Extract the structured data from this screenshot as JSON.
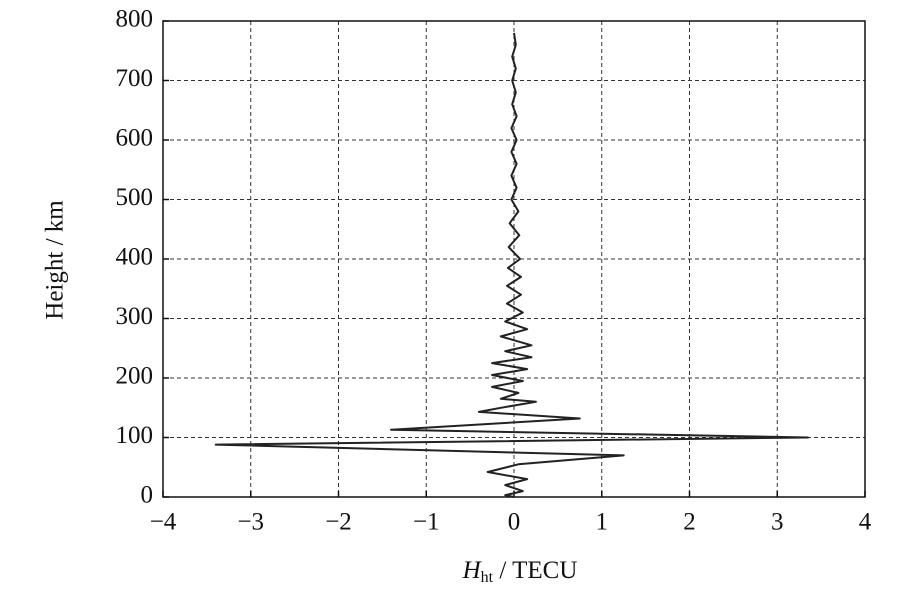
{
  "chart_data": {
    "type": "line",
    "y_label": "Height / km",
    "x_label": {
      "symbol": "H",
      "subscript": "ht",
      "rest": " / TECU"
    },
    "xlim": [
      -4,
      4
    ],
    "xticks": [
      {
        "value": -4,
        "label": "−4"
      },
      {
        "value": -3,
        "label": "−3"
      },
      {
        "value": -2,
        "label": "−2"
      },
      {
        "value": -1,
        "label": "−1"
      },
      0,
      1,
      2,
      3,
      4
    ],
    "ylim": [
      0,
      800
    ],
    "yticks": [
      0,
      100,
      200,
      300,
      400,
      500,
      600,
      700,
      800
    ],
    "grid": true,
    "series": [
      {
        "color": "#222222",
        "x": [
          0.0,
          0.02,
          -0.02,
          0.02,
          -0.02,
          0.02,
          -0.02,
          0.03,
          -0.03,
          0.03,
          -0.03,
          0.03,
          -0.03,
          0.03,
          -0.03,
          0.05,
          -0.05,
          0.06,
          -0.06,
          0.07,
          -0.07,
          0.08,
          -0.08,
          0.08,
          -0.08,
          0.1,
          -0.1,
          0.15,
          -0.15,
          0.2,
          -0.1,
          0.2,
          -0.25,
          0.15,
          -0.25,
          0.1,
          -0.25,
          0.05,
          -0.15,
          0.25,
          -0.15,
          -0.4,
          0.75,
          -1.4,
          3.35,
          -3.4,
          1.25,
          0.05,
          -0.3,
          0.15,
          -0.1,
          0.1,
          -0.1,
          0.0
        ],
        "values": [
          780,
          760,
          740,
          720,
          700,
          680,
          660,
          640,
          620,
          600,
          580,
          560,
          540,
          520,
          500,
          480,
          460,
          440,
          420,
          400,
          385,
          370,
          355,
          340,
          325,
          310,
          295,
          282,
          270,
          255,
          245,
          235,
          225,
          215,
          205,
          195,
          185,
          175,
          165,
          160,
          150,
          143,
          132,
          113,
          100,
          88,
          70,
          55,
          42,
          30,
          20,
          10,
          3,
          0
        ]
      }
    ]
  }
}
